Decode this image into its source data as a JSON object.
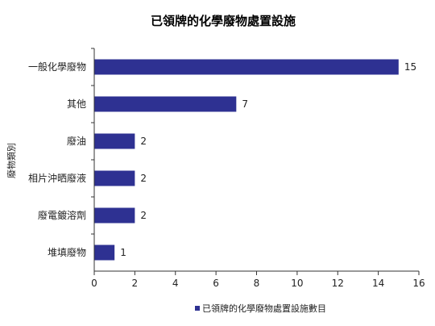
{
  "chart_data": {
    "type": "bar",
    "orientation": "horizontal",
    "title": "已領牌的化學廢物處置設施",
    "ylabel": "廢物類別",
    "xlabel": "",
    "categories": [
      "一般化學廢物",
      "其他",
      "廢油",
      "相片沖晒廢液",
      "廢電鍍溶劑",
      "堆填廢物"
    ],
    "series": [
      {
        "name": "已領牌的化學廢物處置設施數目",
        "values": [
          15,
          7,
          2,
          2,
          2,
          1
        ],
        "color": "#2e3192"
      }
    ],
    "xlim": [
      0,
      16
    ],
    "xticks": [
      0,
      2,
      4,
      6,
      8,
      10,
      12,
      14,
      16
    ],
    "grid": false,
    "legend_position": "bottom"
  }
}
